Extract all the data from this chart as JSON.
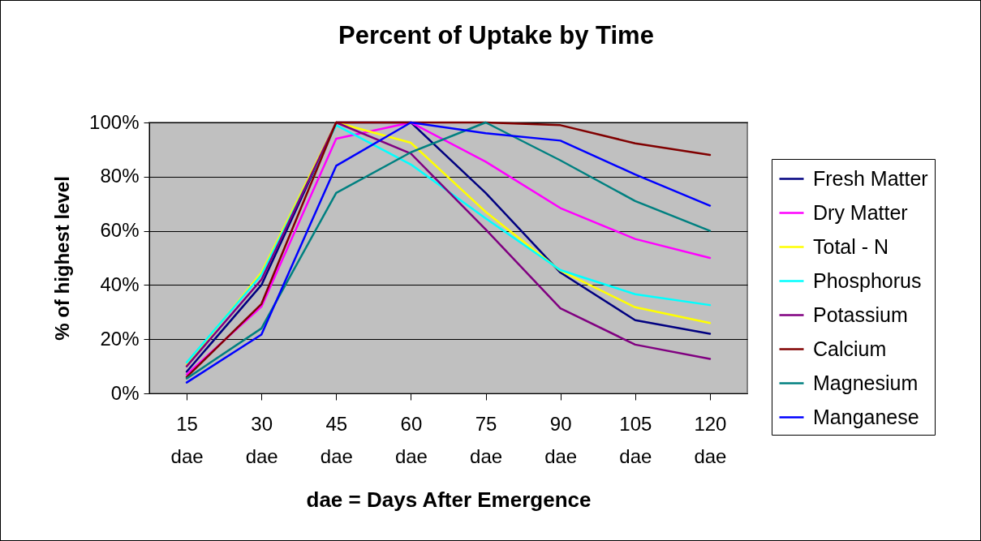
{
  "chart_data": {
    "type": "line",
    "title": "Percent of Uptake by Time",
    "xlabel": "dae = Days After Emergence",
    "ylabel": "% of highest level",
    "categories": [
      "15 dae",
      "30 dae",
      "45 dae",
      "60 dae",
      "75 dae",
      "90 dae",
      "105 dae",
      "120 dae"
    ],
    "series": [
      {
        "name": "Fresh Matter",
        "color": "#000080",
        "values": [
          8,
          40,
          100,
          100,
          74,
          44.6,
          27,
          22
        ]
      },
      {
        "name": "Dry Matter",
        "color": "#ff00ff",
        "values": [
          7,
          32,
          94,
          100,
          85.5,
          68.4,
          57,
          50
        ]
      },
      {
        "name": "Total - N",
        "color": "#ffff00",
        "values": [
          10.5,
          44.6,
          100,
          92.5,
          67,
          45.3,
          31.8,
          26
        ]
      },
      {
        "name": "Phosphorus",
        "color": "#00ffff",
        "values": [
          11.4,
          43.7,
          99,
          84.5,
          64.6,
          45.5,
          36.6,
          32.6
        ]
      },
      {
        "name": "Potassium",
        "color": "#800080",
        "values": [
          10,
          42,
          100,
          88.5,
          60.5,
          31.4,
          18,
          12.7
        ]
      },
      {
        "name": "Calcium",
        "color": "#800000",
        "values": [
          6,
          33,
          100,
          100,
          100,
          99,
          92.3,
          88
        ]
      },
      {
        "name": "Magnesium",
        "color": "#008080",
        "values": [
          5.5,
          24,
          74,
          89,
          100,
          86,
          71,
          60
        ]
      },
      {
        "name": "Manganese",
        "color": "#0000ff",
        "values": [
          4,
          21.7,
          84,
          100,
          96,
          93.3,
          80.8,
          69.3
        ]
      }
    ],
    "ylim": [
      0,
      100
    ],
    "yticks": [
      {
        "value": 0,
        "label": "0%"
      },
      {
        "value": 20,
        "label": "20%"
      },
      {
        "value": 40,
        "label": "40%"
      },
      {
        "value": 60,
        "label": "60%"
      },
      {
        "value": 80,
        "label": "80%"
      },
      {
        "value": 100,
        "label": "100%"
      }
    ],
    "grid": "y",
    "legend": "right",
    "marker": "none",
    "line_style": "solid"
  }
}
